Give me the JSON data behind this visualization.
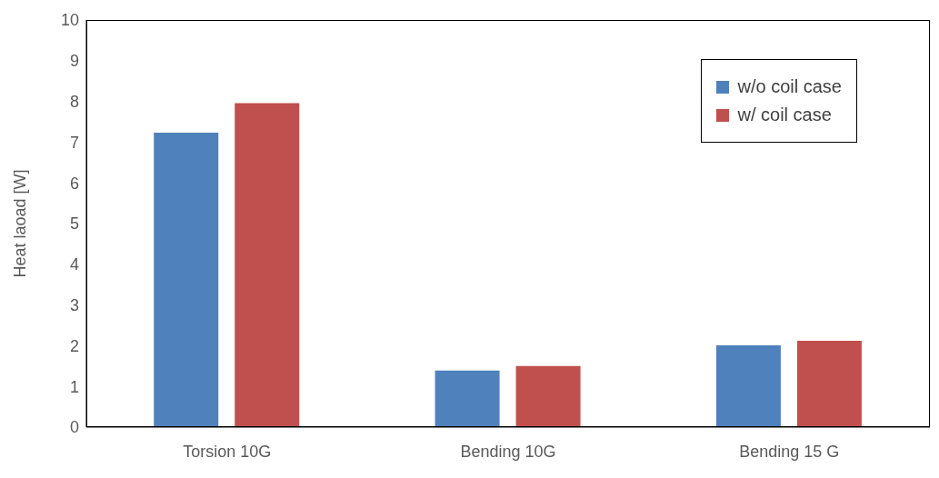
{
  "chart_data": {
    "type": "bar",
    "ylabel": "Heat laoad [W]",
    "categories": [
      "Torsion 10G",
      "Bending 10G",
      "Bending 15 G"
    ],
    "series": [
      {
        "name": "w/o coil case",
        "color": "#4f81bd",
        "values": [
          7.23,
          1.39,
          2.01
        ]
      },
      {
        "name": "w/ coil case",
        "color": "#c0504d",
        "values": [
          7.96,
          1.5,
          2.12
        ]
      }
    ],
    "ylim": [
      0,
      10
    ],
    "yticks": [
      0,
      1,
      2,
      3,
      4,
      5,
      6,
      7,
      8,
      9,
      10
    ],
    "grid": false,
    "legend": "top right"
  }
}
